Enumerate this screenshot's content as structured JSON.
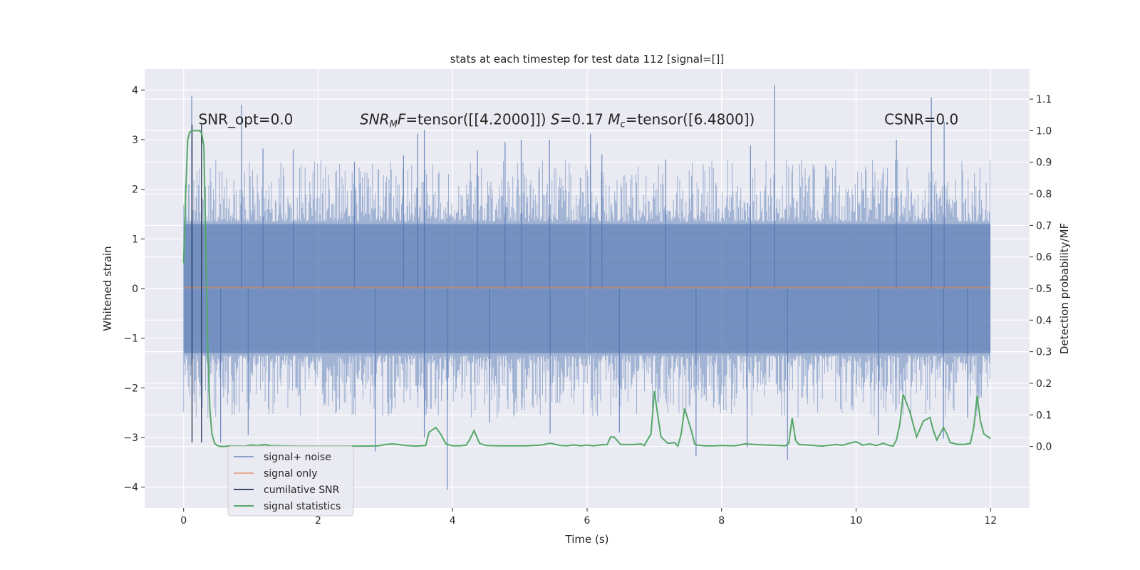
{
  "chart_data": {
    "type": "line",
    "title": "stats at each timestep for test data 112 [signal=[]]",
    "xlabel": "Time (s)",
    "ylabel": "Whitened strain",
    "ylabel_right": "Detection probability/MF",
    "xlim": [
      -0.58,
      12.58
    ],
    "ylim": [
      -4.42,
      4.42
    ],
    "ylim_right": [
      -0.195,
      1.195
    ],
    "x_ticks": [
      0,
      2,
      4,
      6,
      8,
      10,
      12
    ],
    "x_tick_labels": [
      "0",
      "2",
      "4",
      "6",
      "8",
      "10",
      "12"
    ],
    "y_ticks": [
      -4,
      -3,
      -2,
      -1,
      0,
      1,
      2,
      3,
      4
    ],
    "y_tick_labels": [
      "−4",
      "−3",
      "−2",
      "−1",
      "0",
      "1",
      "2",
      "3",
      "4"
    ],
    "y_right_ticks": [
      0.0,
      0.1,
      0.2,
      0.3,
      0.4,
      0.5,
      0.6,
      0.7,
      0.8,
      0.9,
      1.0,
      1.1
    ],
    "y_right_tick_labels": [
      "0.0",
      "0.1",
      "0.2",
      "0.3",
      "0.4",
      "0.5",
      "0.6",
      "0.7",
      "0.8",
      "0.9",
      "1.0",
      "1.1"
    ],
    "grid": true,
    "legend_position": "lower-left",
    "annotations": [
      {
        "id": "snr-opt",
        "parts": [
          {
            "t": "SNR_opt=0.0"
          }
        ],
        "x": 0.22,
        "y": 3.25
      },
      {
        "id": "snr-mf",
        "parts": [
          {
            "t": "SNR",
            "i": true
          },
          {
            "t": "M",
            "i": true,
            "sub": true
          },
          {
            "t": "F",
            "i": true
          },
          {
            "t": "=tensor([[4.2000]])  "
          },
          {
            "t": "S",
            "i": true
          },
          {
            "t": "=0.17   "
          },
          {
            "t": "M",
            "i": true
          },
          {
            "t": "c",
            "i": true,
            "sub": true
          },
          {
            "t": "=tensor([6.4800])"
          }
        ],
        "x": 2.62,
        "y": 3.25
      },
      {
        "id": "csnr",
        "parts": [
          {
            "t": "CSNR=0.0"
          }
        ],
        "x": 10.42,
        "y": 3.25
      }
    ],
    "series": [
      {
        "name": "signal+ noise",
        "color": "#4c72b0",
        "alpha": 0.5,
        "axis": "left",
        "kind": "noise",
        "x_range": [
          0,
          12
        ],
        "band": [
          -1.3,
          1.3
        ],
        "extremes": [
          {
            "x": 0.12,
            "y": 3.88
          },
          {
            "x": 0.86,
            "y": 3.7
          },
          {
            "x": 1.18,
            "y": 2.82
          },
          {
            "x": 1.63,
            "y": 2.8
          },
          {
            "x": 2.54,
            "y": 2.55
          },
          {
            "x": 3.27,
            "y": 2.68
          },
          {
            "x": 3.48,
            "y": 3.12
          },
          {
            "x": 3.58,
            "y": 3.2
          },
          {
            "x": 4.37,
            "y": 2.78
          },
          {
            "x": 4.78,
            "y": 2.95
          },
          {
            "x": 5.02,
            "y": 3.0
          },
          {
            "x": 5.44,
            "y": 3.0
          },
          {
            "x": 6.05,
            "y": 3.12
          },
          {
            "x": 6.22,
            "y": 2.7
          },
          {
            "x": 7.17,
            "y": 2.6
          },
          {
            "x": 8.43,
            "y": 2.88
          },
          {
            "x": 8.79,
            "y": 4.1
          },
          {
            "x": 10.6,
            "y": 3.0
          },
          {
            "x": 11.12,
            "y": 3.85
          },
          {
            "x": 11.31,
            "y": 3.36
          },
          {
            "x": 3.92,
            "y": -4.05
          },
          {
            "x": 2.85,
            "y": -3.28
          },
          {
            "x": 0.96,
            "y": -2.95
          },
          {
            "x": 0.55,
            "y": -3.1
          },
          {
            "x": 7.62,
            "y": -3.38
          },
          {
            "x": 8.38,
            "y": -3.2
          },
          {
            "x": 8.98,
            "y": -3.45
          },
          {
            "x": 10.33,
            "y": -2.95
          },
          {
            "x": 11.3,
            "y": -3.02
          },
          {
            "x": 5.45,
            "y": -2.92
          },
          {
            "x": 6.48,
            "y": -2.9
          },
          {
            "x": 3.58,
            "y": -3.0
          },
          {
            "x": 4.55,
            "y": -2.7
          },
          {
            "x": 11.66,
            "y": -2.6
          }
        ]
      },
      {
        "name": "signal only",
        "color": "#dd8452",
        "alpha": 0.6,
        "axis": "left",
        "kind": "line",
        "x": [
          0,
          12
        ],
        "y": [
          0.02,
          0.02
        ]
      },
      {
        "name": "cumilative SNR",
        "color": "#2b3a55",
        "alpha": 0.9,
        "axis": "left",
        "kind": "vlines",
        "x": [
          0.125,
          0.265
        ],
        "y_range": [
          -3.1,
          3.3
        ]
      },
      {
        "name": "signal statistics",
        "color": "#55a868",
        "alpha": 1.0,
        "axis": "right",
        "kind": "line",
        "x": [
          0.0,
          0.03,
          0.06,
          0.09,
          0.12,
          0.15,
          0.18,
          0.21,
          0.24,
          0.27,
          0.3,
          0.33,
          0.36,
          0.39,
          0.42,
          0.46,
          0.5,
          0.55,
          0.6,
          0.7,
          0.8,
          0.9,
          1.0,
          1.1,
          1.2,
          1.3,
          1.5,
          1.7,
          1.9,
          2.1,
          2.3,
          2.5,
          2.7,
          2.9,
          3.0,
          3.1,
          3.2,
          3.3,
          3.45,
          3.6,
          3.65,
          3.75,
          3.82,
          3.9,
          4.0,
          4.1,
          4.2,
          4.25,
          4.32,
          4.4,
          4.5,
          4.7,
          4.9,
          5.1,
          5.3,
          5.45,
          5.5,
          5.6,
          5.7,
          5.8,
          5.9,
          6.0,
          6.1,
          6.2,
          6.3,
          6.35,
          6.4,
          6.5,
          6.55,
          6.7,
          6.8,
          6.85,
          6.95,
          7.0,
          7.05,
          7.1,
          7.2,
          7.3,
          7.35,
          7.4,
          7.45,
          7.5,
          7.55,
          7.6,
          7.65,
          7.75,
          7.9,
          8.0,
          8.2,
          8.35,
          8.5,
          8.7,
          8.85,
          8.95,
          9.0,
          9.05,
          9.1,
          9.15,
          9.3,
          9.5,
          9.7,
          9.8,
          9.9,
          10.0,
          10.1,
          10.2,
          10.3,
          10.4,
          10.5,
          10.55,
          10.6,
          10.65,
          10.7,
          10.8,
          10.9,
          11.0,
          11.1,
          11.15,
          11.2,
          11.3,
          11.35,
          11.4,
          11.5,
          11.6,
          11.7,
          11.75,
          11.8,
          11.85,
          11.9,
          12.0
        ],
        "y": [
          0.58,
          0.8,
          0.97,
          0.995,
          1.0,
          1.0,
          1.0,
          1.0,
          1.0,
          0.99,
          0.95,
          0.62,
          0.3,
          0.12,
          0.04,
          0.01,
          0.003,
          0.0,
          0.0,
          0.002,
          0.002,
          0.001,
          0.005,
          0.003,
          0.006,
          0.003,
          0.002,
          0.001,
          0.001,
          0.001,
          0.001,
          0.001,
          0.001,
          0.002,
          0.006,
          0.008,
          0.006,
          0.003,
          0.001,
          0.003,
          0.045,
          0.06,
          0.04,
          0.008,
          0.002,
          0.002,
          0.004,
          0.02,
          0.05,
          0.01,
          0.003,
          0.002,
          0.002,
          0.002,
          0.004,
          0.01,
          0.008,
          0.003,
          0.002,
          0.005,
          0.002,
          0.004,
          0.002,
          0.005,
          0.006,
          0.03,
          0.03,
          0.006,
          0.006,
          0.006,
          0.008,
          0.003,
          0.04,
          0.175,
          0.1,
          0.03,
          0.01,
          0.012,
          0.001,
          0.04,
          0.12,
          0.085,
          0.05,
          0.007,
          0.004,
          0.002,
          0.002,
          0.003,
          0.002,
          0.008,
          0.006,
          0.004,
          0.003,
          0.002,
          0.01,
          0.09,
          0.02,
          0.006,
          0.004,
          0.001,
          0.006,
          0.004,
          0.01,
          0.015,
          0.004,
          0.008,
          0.003,
          0.01,
          0.003,
          0.001,
          0.02,
          0.07,
          0.165,
          0.11,
          0.03,
          0.08,
          0.092,
          0.05,
          0.02,
          0.06,
          0.04,
          0.012,
          0.007,
          0.006,
          0.01,
          0.06,
          0.16,
          0.08,
          0.04,
          0.025
        ]
      }
    ]
  }
}
